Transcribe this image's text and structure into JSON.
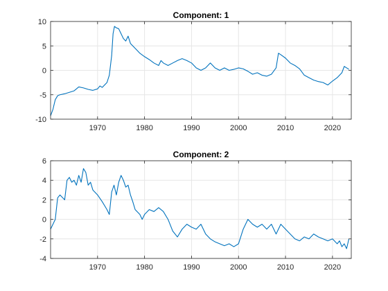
{
  "accent_color": "#0072bd",
  "chart_data": [
    {
      "type": "line",
      "title": "Component: 1",
      "xlabel": "",
      "ylabel": "",
      "xlim": [
        1960,
        2024
      ],
      "ylim": [
        -10,
        10
      ],
      "xticks": [
        1970,
        1980,
        1990,
        2000,
        2010,
        2020
      ],
      "yticks": [
        -10,
        -5,
        0,
        5,
        10
      ],
      "grid": true,
      "series": [
        {
          "x": [
            1960,
            1960.5,
            1961,
            1961.5,
            1962,
            1963,
            1964,
            1965,
            1965.5,
            1966,
            1967,
            1968,
            1969,
            1970,
            1970.5,
            1971,
            1971.5,
            1972,
            1972.5,
            1973,
            1973.3,
            1973.6,
            1974,
            1974.5,
            1975,
            1975.5,
            1976,
            1976.5,
            1977,
            1977.5,
            1978,
            1978.5,
            1979,
            1980,
            1981,
            1982,
            1983,
            1983.5,
            1984,
            1985,
            1986,
            1987,
            1988,
            1989,
            1990,
            1991,
            1992,
            1993,
            1994,
            1995,
            1996,
            1997,
            1998,
            1999,
            2000,
            2001,
            2002,
            2003,
            2004,
            2005,
            2006,
            2007,
            2008,
            2008.5,
            2009,
            2010,
            2011,
            2012,
            2013,
            2014,
            2015,
            2016,
            2017,
            2018,
            2019,
            2020,
            2021,
            2022,
            2022.5,
            2023,
            2023.5
          ],
          "y": [
            -9.3,
            -8.0,
            -6.0,
            -5.2,
            -5.0,
            -4.8,
            -4.5,
            -4.2,
            -3.8,
            -3.4,
            -3.6,
            -3.9,
            -4.1,
            -3.8,
            -3.2,
            -3.5,
            -3.0,
            -2.5,
            -1.0,
            3.0,
            7.5,
            9.0,
            8.7,
            8.5,
            7.5,
            6.5,
            6.0,
            7.0,
            5.5,
            5.0,
            4.5,
            4.0,
            3.5,
            2.8,
            2.2,
            1.5,
            1.0,
            2.0,
            1.5,
            1.0,
            1.5,
            2.0,
            2.4,
            2.0,
            1.5,
            0.5,
            0.0,
            0.5,
            1.5,
            0.5,
            0.0,
            0.5,
            0.0,
            0.2,
            0.5,
            0.3,
            -0.2,
            -0.8,
            -0.5,
            -1.0,
            -1.2,
            -0.8,
            0.5,
            3.5,
            3.2,
            2.5,
            1.5,
            1.0,
            0.3,
            -1.0,
            -1.5,
            -2.0,
            -2.3,
            -2.5,
            -3.0,
            -2.2,
            -1.5,
            -0.5,
            0.8,
            0.5,
            0.2
          ]
        }
      ]
    },
    {
      "type": "line",
      "title": "Component: 2",
      "xlabel": "",
      "ylabel": "",
      "xlim": [
        1960,
        2024
      ],
      "ylim": [
        -4,
        6
      ],
      "xticks": [
        1970,
        1980,
        1990,
        2000,
        2010,
        2020
      ],
      "yticks": [
        -4,
        -2,
        0,
        2,
        4,
        6
      ],
      "grid": true,
      "series": [
        {
          "x": [
            1960,
            1961,
            1961.5,
            1962,
            1963,
            1963.5,
            1964,
            1964.5,
            1965,
            1965.5,
            1966,
            1966.5,
            1967,
            1967.5,
            1968,
            1968.5,
            1969,
            1970,
            1971,
            1972,
            1972.5,
            1973,
            1973.5,
            1974,
            1974.5,
            1975,
            1975.5,
            1976,
            1976.5,
            1977,
            1977.5,
            1978,
            1979,
            1979.5,
            1980,
            1981,
            1982,
            1983,
            1984,
            1985,
            1986,
            1987,
            1988,
            1989,
            1990,
            1991,
            1992,
            1993,
            1994,
            1995,
            1996,
            1997,
            1998,
            1999,
            2000,
            2001,
            2002,
            2003,
            2004,
            2005,
            2006,
            2007,
            2008,
            2009,
            2010,
            2011,
            2012,
            2013,
            2014,
            2015,
            2016,
            2017,
            2018,
            2019,
            2020,
            2021,
            2021.5,
            2022,
            2022.5,
            2023,
            2023.5
          ],
          "y": [
            -1.0,
            0.0,
            2.2,
            2.5,
            2.0,
            4.0,
            4.3,
            3.8,
            4.0,
            3.5,
            4.5,
            3.8,
            5.2,
            4.8,
            3.5,
            3.8,
            3.0,
            2.5,
            1.8,
            1.0,
            0.5,
            2.8,
            3.5,
            2.5,
            3.8,
            4.5,
            4.0,
            3.3,
            3.5,
            2.5,
            1.8,
            1.0,
            0.5,
            0.0,
            0.5,
            1.0,
            0.8,
            1.2,
            0.8,
            0.0,
            -1.2,
            -1.8,
            -1.0,
            -0.5,
            -0.8,
            -1.0,
            -0.5,
            -1.5,
            -2.0,
            -2.3,
            -2.5,
            -2.7,
            -2.5,
            -2.8,
            -2.5,
            -1.0,
            0.0,
            -0.5,
            -0.8,
            -0.5,
            -1.0,
            -0.5,
            -1.5,
            -0.5,
            -1.0,
            -1.5,
            -2.0,
            -2.2,
            -1.8,
            -2.0,
            -1.5,
            -1.8,
            -2.0,
            -2.2,
            -2.0,
            -2.5,
            -2.2,
            -2.8,
            -2.5,
            -3.0,
            -2.0
          ]
        }
      ]
    }
  ]
}
